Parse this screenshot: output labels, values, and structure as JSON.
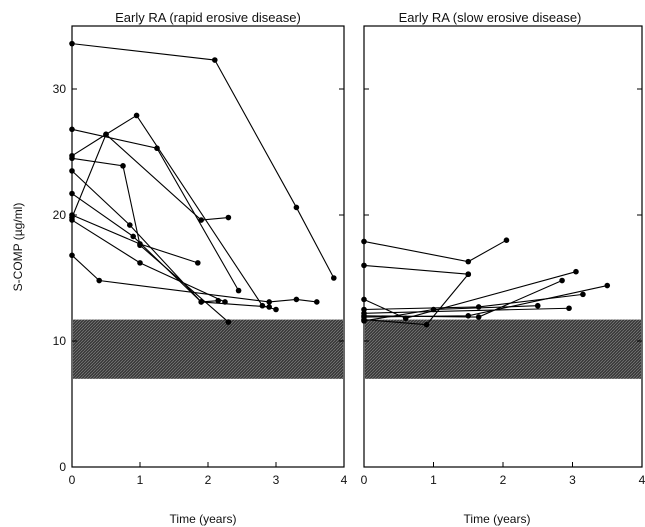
{
  "chart_data": [
    {
      "type": "line",
      "title": "Early RA (rapid erosive disease)",
      "xlabel": "Time (years)",
      "ylabel": "S-COMP (µg/ml)",
      "xlim": [
        0,
        4
      ],
      "ylim": [
        0,
        35
      ],
      "x_ticks": [
        "0",
        "1",
        "2",
        "3",
        "4"
      ],
      "y_ticks": [
        "0",
        "10",
        "20",
        "30"
      ],
      "reference_band": [
        7,
        11.7
      ],
      "series": [
        {
          "points": [
            [
              0,
              33.6
            ],
            [
              2.1,
              32.3
            ],
            [
              3.3,
              20.6
            ],
            [
              3.85,
              15.0
            ]
          ]
        },
        {
          "points": [
            [
              0,
              26.8
            ],
            [
              1.25,
              25.3
            ],
            [
              2.45,
              14.0
            ]
          ]
        },
        {
          "points": [
            [
              0,
              24.7
            ],
            [
              0.5,
              26.4
            ],
            [
              1.9,
              19.6
            ],
            [
              2.3,
              19.8
            ]
          ]
        },
        {
          "points": [
            [
              0,
              24.5
            ],
            [
              0.75,
              23.9
            ],
            [
              1.0,
              17.6
            ],
            [
              2.3,
              11.5
            ]
          ]
        },
        {
          "points": [
            [
              0,
              23.5
            ],
            [
              0.85,
              19.2
            ],
            [
              1.9,
              13.1
            ],
            [
              2.15,
              13.2
            ]
          ]
        },
        {
          "points": [
            [
              0,
              21.7
            ],
            [
              0.9,
              18.3
            ],
            [
              1.9,
              13.1
            ],
            [
              2.9,
              12.7
            ]
          ]
        },
        {
          "points": [
            [
              0,
              20.0
            ],
            [
              1.0,
              17.7
            ],
            [
              1.85,
              16.2
            ]
          ]
        },
        {
          "points": [
            [
              0,
              19.8
            ],
            [
              0.5,
              26.4
            ],
            [
              0.95,
              27.9
            ],
            [
              2.8,
              12.8
            ],
            [
              3.0,
              12.5
            ]
          ]
        },
        {
          "points": [
            [
              0,
              16.8
            ],
            [
              0.4,
              14.8
            ],
            [
              2.9,
              13.1
            ],
            [
              3.3,
              13.3
            ],
            [
              3.6,
              13.1
            ]
          ]
        },
        {
          "points": [
            [
              0,
              19.6
            ],
            [
              1.0,
              16.2
            ],
            [
              2.25,
              13.1
            ]
          ]
        }
      ]
    },
    {
      "type": "line",
      "title": "Early RA (slow erosive disease)",
      "xlabel": "Time (years)",
      "ylabel": "",
      "xlim": [
        0,
        4
      ],
      "ylim": [
        0,
        35
      ],
      "x_ticks": [
        "0",
        "1",
        "2",
        "3",
        "4"
      ],
      "y_ticks": [],
      "reference_band": [
        7,
        11.7
      ],
      "series": [
        {
          "points": [
            [
              0,
              17.9
            ],
            [
              1.5,
              16.3
            ],
            [
              2.05,
              18.0
            ]
          ]
        },
        {
          "points": [
            [
              0,
              16.0
            ],
            [
              1.5,
              15.3
            ]
          ]
        },
        {
          "points": [
            [
              0,
              13.3
            ],
            [
              0.6,
              11.8
            ],
            [
              3.05,
              15.5
            ]
          ]
        },
        {
          "points": [
            [
              0,
              12.5
            ],
            [
              1.65,
              12.7
            ],
            [
              3.15,
              13.7
            ]
          ]
        },
        {
          "points": [
            [
              0,
              12.2
            ],
            [
              2.95,
              12.6
            ]
          ]
        },
        {
          "points": [
            [
              0,
              11.9
            ],
            [
              1.5,
              12.0
            ],
            [
              3.5,
              14.4
            ]
          ]
        },
        {
          "points": [
            [
              0,
              11.7
            ],
            [
              0.9,
              11.3
            ],
            [
              1.5,
              15.3
            ]
          ]
        },
        {
          "points": [
            [
              0,
              12.0
            ],
            [
              1.65,
              11.9
            ],
            [
              2.85,
              14.8
            ]
          ]
        },
        {
          "points": [
            [
              0,
              11.6
            ],
            [
              1.0,
              12.5
            ],
            [
              2.5,
              12.8
            ]
          ]
        }
      ]
    }
  ]
}
